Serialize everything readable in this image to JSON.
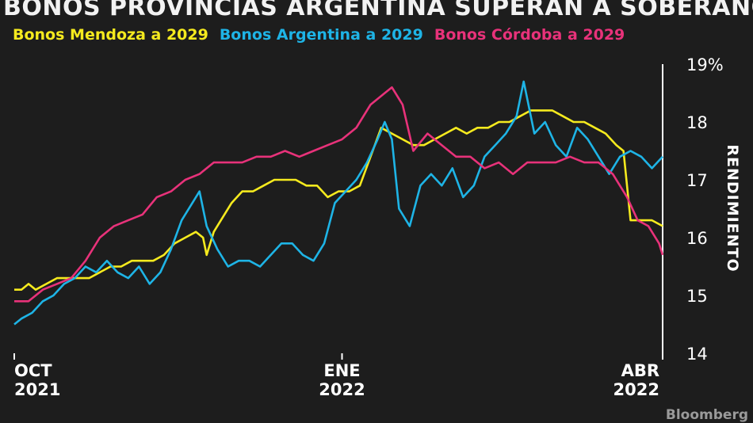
{
  "title": "BONOS PROVINCIAS ARGENTINA SUPERAN A SOBERANOS",
  "source": "Bloomberg",
  "colors": {
    "background": "#1d1d1d",
    "axis": "#ffffff"
  },
  "chart_data": {
    "type": "line",
    "title": "BONOS PROVINCIAS ARGENTINA SUPERAN A SOBERANOS",
    "ylabel": "RENDIMIENTO",
    "ylim": [
      14,
      19
    ],
    "yticks": [
      {
        "value": 14,
        "label": "14"
      },
      {
        "value": 15,
        "label": "15"
      },
      {
        "value": 16,
        "label": "16"
      },
      {
        "value": 17,
        "label": "17"
      },
      {
        "value": 18,
        "label": "18"
      },
      {
        "value": 19,
        "label": "19%"
      }
    ],
    "xlim": [
      "2021-10-01",
      "2022-04-01"
    ],
    "xticks": [
      {
        "date": "2021-10-01",
        "line1": "OCT",
        "line2": "2021"
      },
      {
        "date": "2022-01-01",
        "line1": "ENE",
        "line2": "2022"
      },
      {
        "date": "2022-04-01",
        "line1": "ABR",
        "line2": "2022"
      }
    ],
    "grid": false,
    "legend": "top-left",
    "series": [
      {
        "name": "Bonos Mendoza a 2029",
        "color": "#f5ea1e",
        "points": [
          [
            "2021-10-01",
            15.1
          ],
          [
            "2021-10-03",
            15.1
          ],
          [
            "2021-10-05",
            15.2
          ],
          [
            "2021-10-07",
            15.1
          ],
          [
            "2021-10-10",
            15.2
          ],
          [
            "2021-10-13",
            15.3
          ],
          [
            "2021-10-16",
            15.3
          ],
          [
            "2021-10-19",
            15.3
          ],
          [
            "2021-10-22",
            15.3
          ],
          [
            "2021-10-25",
            15.4
          ],
          [
            "2021-10-28",
            15.5
          ],
          [
            "2021-10-31",
            15.5
          ],
          [
            "2021-11-03",
            15.6
          ],
          [
            "2021-11-06",
            15.6
          ],
          [
            "2021-11-09",
            15.6
          ],
          [
            "2021-11-12",
            15.7
          ],
          [
            "2021-11-15",
            15.9
          ],
          [
            "2021-11-18",
            16.0
          ],
          [
            "2021-11-21",
            16.1
          ],
          [
            "2021-11-23",
            16.0
          ],
          [
            "2021-11-24",
            15.7
          ],
          [
            "2021-11-26",
            16.1
          ],
          [
            "2021-11-28",
            16.3
          ],
          [
            "2021-12-01",
            16.6
          ],
          [
            "2021-12-04",
            16.8
          ],
          [
            "2021-12-07",
            16.8
          ],
          [
            "2021-12-10",
            16.9
          ],
          [
            "2021-12-13",
            17.0
          ],
          [
            "2021-12-16",
            17.0
          ],
          [
            "2021-12-19",
            17.0
          ],
          [
            "2021-12-22",
            16.9
          ],
          [
            "2021-12-25",
            16.9
          ],
          [
            "2021-12-28",
            16.7
          ],
          [
            "2021-12-31",
            16.8
          ],
          [
            "2022-01-03",
            16.8
          ],
          [
            "2022-01-06",
            16.9
          ],
          [
            "2022-01-09",
            17.4
          ],
          [
            "2022-01-12",
            17.9
          ],
          [
            "2022-01-15",
            17.8
          ],
          [
            "2022-01-18",
            17.7
          ],
          [
            "2022-01-21",
            17.6
          ],
          [
            "2022-01-24",
            17.6
          ],
          [
            "2022-01-27",
            17.7
          ],
          [
            "2022-01-30",
            17.8
          ],
          [
            "2022-02-02",
            17.9
          ],
          [
            "2022-02-05",
            17.8
          ],
          [
            "2022-02-08",
            17.9
          ],
          [
            "2022-02-11",
            17.9
          ],
          [
            "2022-02-14",
            18.0
          ],
          [
            "2022-02-17",
            18.0
          ],
          [
            "2022-02-20",
            18.1
          ],
          [
            "2022-02-23",
            18.2
          ],
          [
            "2022-02-26",
            18.2
          ],
          [
            "2022-03-01",
            18.2
          ],
          [
            "2022-03-04",
            18.1
          ],
          [
            "2022-03-07",
            18.0
          ],
          [
            "2022-03-10",
            18.0
          ],
          [
            "2022-03-13",
            17.9
          ],
          [
            "2022-03-16",
            17.8
          ],
          [
            "2022-03-19",
            17.6
          ],
          [
            "2022-03-21",
            17.5
          ],
          [
            "2022-03-23",
            16.3
          ],
          [
            "2022-03-26",
            16.3
          ],
          [
            "2022-03-29",
            16.3
          ],
          [
            "2022-04-01",
            16.2
          ]
        ]
      },
      {
        "name": "Bonos Argentina a 2029",
        "color": "#1eb4e6",
        "points": [
          [
            "2021-10-01",
            14.5
          ],
          [
            "2021-10-03",
            14.6
          ],
          [
            "2021-10-06",
            14.7
          ],
          [
            "2021-10-09",
            14.9
          ],
          [
            "2021-10-12",
            15.0
          ],
          [
            "2021-10-15",
            15.2
          ],
          [
            "2021-10-18",
            15.3
          ],
          [
            "2021-10-21",
            15.5
          ],
          [
            "2021-10-24",
            15.4
          ],
          [
            "2021-10-27",
            15.6
          ],
          [
            "2021-10-30",
            15.4
          ],
          [
            "2021-11-02",
            15.3
          ],
          [
            "2021-11-05",
            15.5
          ],
          [
            "2021-11-08",
            15.2
          ],
          [
            "2021-11-11",
            15.4
          ],
          [
            "2021-11-14",
            15.8
          ],
          [
            "2021-11-17",
            16.3
          ],
          [
            "2021-11-20",
            16.6
          ],
          [
            "2021-11-22",
            16.8
          ],
          [
            "2021-11-24",
            16.2
          ],
          [
            "2021-11-27",
            15.8
          ],
          [
            "2021-11-30",
            15.5
          ],
          [
            "2021-12-03",
            15.6
          ],
          [
            "2021-12-06",
            15.6
          ],
          [
            "2021-12-09",
            15.5
          ],
          [
            "2021-12-12",
            15.7
          ],
          [
            "2021-12-15",
            15.9
          ],
          [
            "2021-12-18",
            15.9
          ],
          [
            "2021-12-21",
            15.7
          ],
          [
            "2021-12-24",
            15.6
          ],
          [
            "2021-12-27",
            15.9
          ],
          [
            "2021-12-30",
            16.6
          ],
          [
            "2022-01-02",
            16.8
          ],
          [
            "2022-01-05",
            17.0
          ],
          [
            "2022-01-08",
            17.3
          ],
          [
            "2022-01-11",
            17.7
          ],
          [
            "2022-01-13",
            18.0
          ],
          [
            "2022-01-15",
            17.7
          ],
          [
            "2022-01-17",
            16.5
          ],
          [
            "2022-01-20",
            16.2
          ],
          [
            "2022-01-23",
            16.9
          ],
          [
            "2022-01-26",
            17.1
          ],
          [
            "2022-01-29",
            16.9
          ],
          [
            "2022-02-01",
            17.2
          ],
          [
            "2022-02-04",
            16.7
          ],
          [
            "2022-02-07",
            16.9
          ],
          [
            "2022-02-10",
            17.4
          ],
          [
            "2022-02-13",
            17.6
          ],
          [
            "2022-02-16",
            17.8
          ],
          [
            "2022-02-19",
            18.1
          ],
          [
            "2022-02-21",
            18.7
          ],
          [
            "2022-02-24",
            17.8
          ],
          [
            "2022-02-27",
            18.0
          ],
          [
            "2022-03-02",
            17.6
          ],
          [
            "2022-03-05",
            17.4
          ],
          [
            "2022-03-08",
            17.9
          ],
          [
            "2022-03-11",
            17.7
          ],
          [
            "2022-03-14",
            17.4
          ],
          [
            "2022-03-17",
            17.1
          ],
          [
            "2022-03-20",
            17.4
          ],
          [
            "2022-03-23",
            17.5
          ],
          [
            "2022-03-26",
            17.4
          ],
          [
            "2022-03-29",
            17.2
          ],
          [
            "2022-04-01",
            17.4
          ]
        ]
      },
      {
        "name": "Bonos Córdoba a 2029",
        "color": "#e8327a",
        "points": [
          [
            "2021-10-01",
            14.9
          ],
          [
            "2021-10-05",
            14.9
          ],
          [
            "2021-10-09",
            15.1
          ],
          [
            "2021-10-13",
            15.2
          ],
          [
            "2021-10-17",
            15.3
          ],
          [
            "2021-10-21",
            15.6
          ],
          [
            "2021-10-25",
            16.0
          ],
          [
            "2021-10-29",
            16.2
          ],
          [
            "2021-11-02",
            16.3
          ],
          [
            "2021-11-06",
            16.4
          ],
          [
            "2021-11-10",
            16.7
          ],
          [
            "2021-11-14",
            16.8
          ],
          [
            "2021-11-18",
            17.0
          ],
          [
            "2021-11-22",
            17.1
          ],
          [
            "2021-11-26",
            17.3
          ],
          [
            "2021-11-30",
            17.3
          ],
          [
            "2021-12-04",
            17.3
          ],
          [
            "2021-12-08",
            17.4
          ],
          [
            "2021-12-12",
            17.4
          ],
          [
            "2021-12-16",
            17.5
          ],
          [
            "2021-12-20",
            17.4
          ],
          [
            "2021-12-24",
            17.5
          ],
          [
            "2021-12-28",
            17.6
          ],
          [
            "2022-01-01",
            17.7
          ],
          [
            "2022-01-05",
            17.9
          ],
          [
            "2022-01-09",
            18.3
          ],
          [
            "2022-01-13",
            18.5
          ],
          [
            "2022-01-15",
            18.6
          ],
          [
            "2022-01-18",
            18.3
          ],
          [
            "2022-01-21",
            17.5
          ],
          [
            "2022-01-25",
            17.8
          ],
          [
            "2022-01-29",
            17.6
          ],
          [
            "2022-02-02",
            17.4
          ],
          [
            "2022-02-06",
            17.4
          ],
          [
            "2022-02-10",
            17.2
          ],
          [
            "2022-02-14",
            17.3
          ],
          [
            "2022-02-18",
            17.1
          ],
          [
            "2022-02-22",
            17.3
          ],
          [
            "2022-02-26",
            17.3
          ],
          [
            "2022-03-02",
            17.3
          ],
          [
            "2022-03-06",
            17.4
          ],
          [
            "2022-03-10",
            17.3
          ],
          [
            "2022-03-14",
            17.3
          ],
          [
            "2022-03-18",
            17.1
          ],
          [
            "2022-03-22",
            16.7
          ],
          [
            "2022-03-25",
            16.3
          ],
          [
            "2022-03-28",
            16.2
          ],
          [
            "2022-03-31",
            15.9
          ],
          [
            "2022-04-01",
            15.7
          ]
        ]
      }
    ]
  }
}
